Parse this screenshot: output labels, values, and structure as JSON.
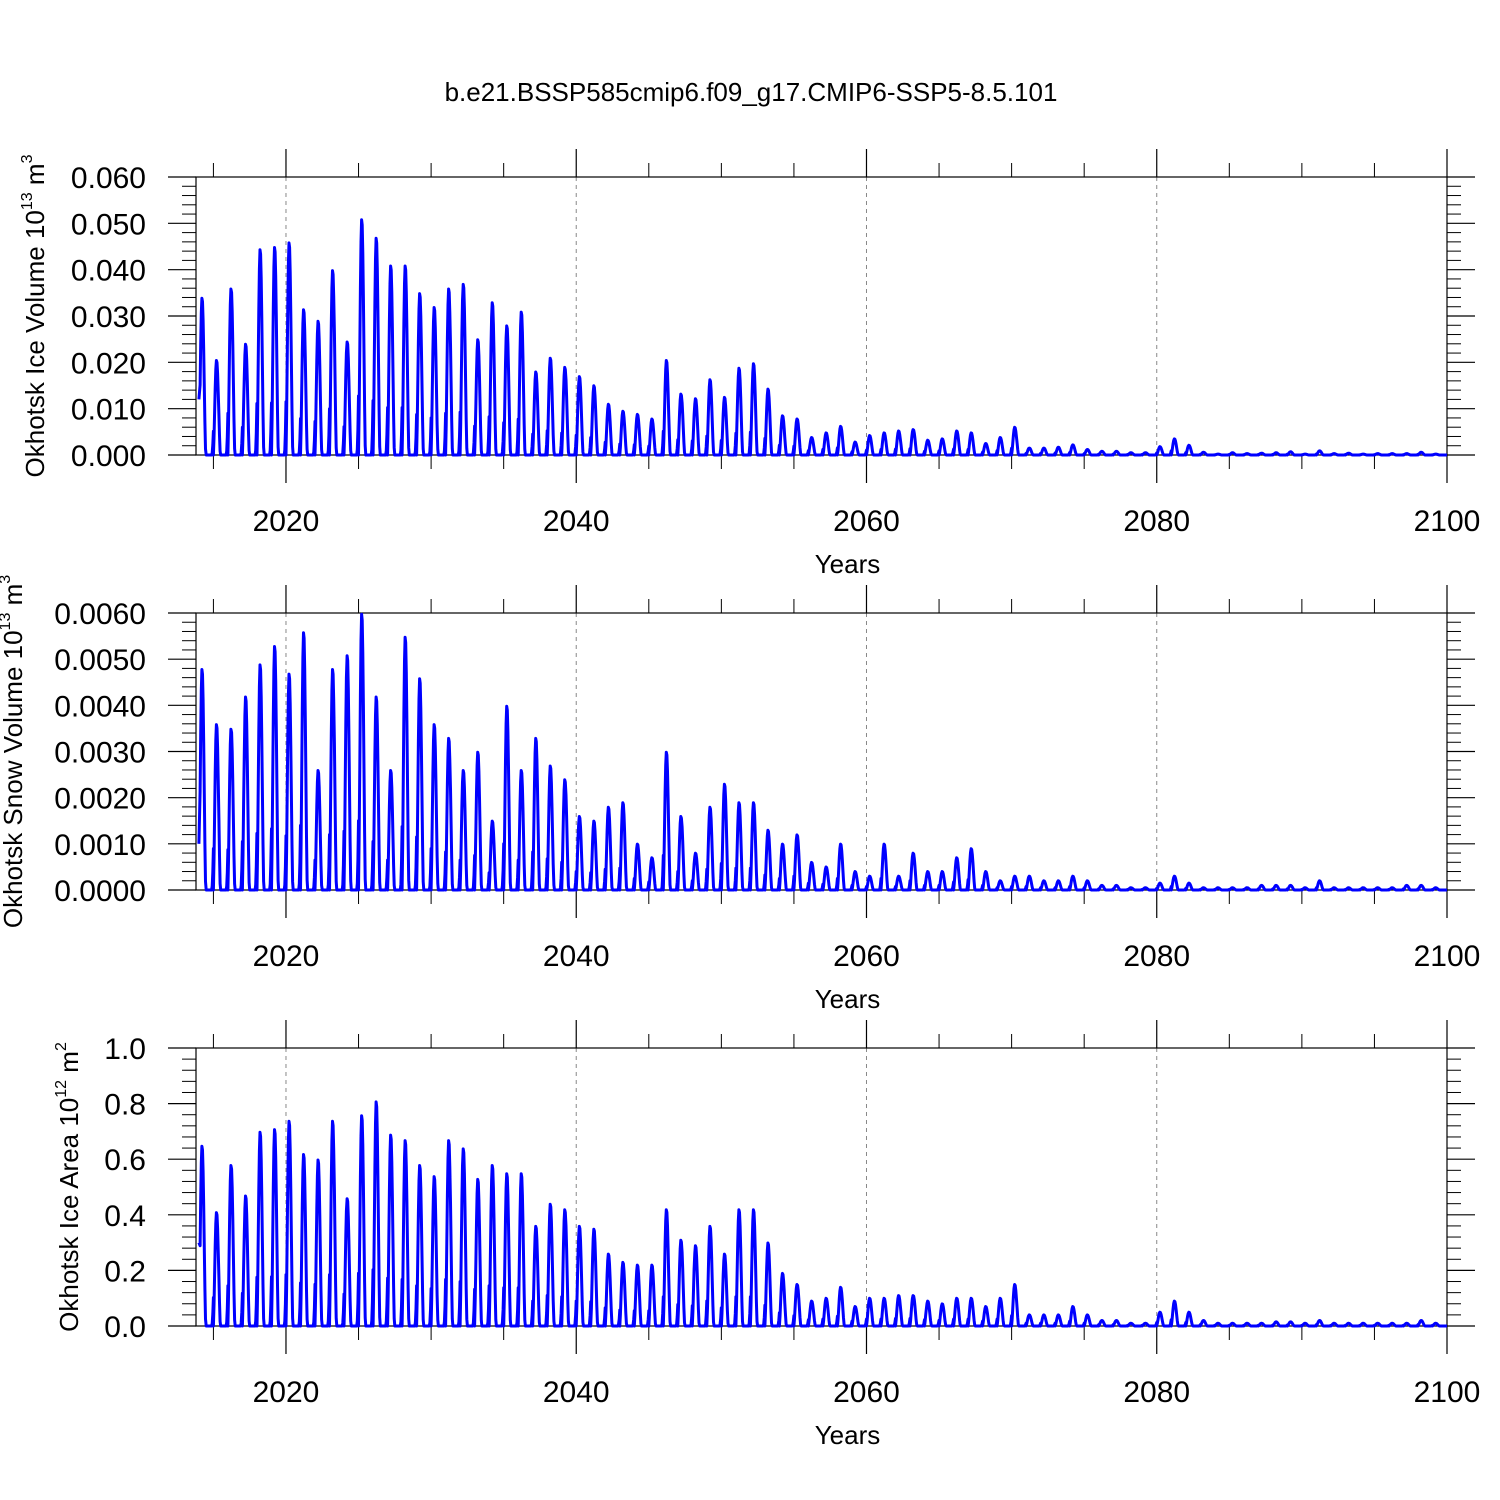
{
  "figure_title": "b.e21.BSSP585cmip6.f09_g17.CMIP6-SSP5-8.5.101",
  "series_color": "#0000ff",
  "chart_data": [
    {
      "type": "line",
      "xlabel": "Years",
      "ylabel": {
        "prefix": "Okhotsk Ice Volume 10",
        "exponent": "13",
        "unit": " m",
        "unit_exponent": "3"
      },
      "xlim": [
        2013.8,
        2100
      ],
      "ylim": [
        0,
        0.06
      ],
      "xticks": [
        2020,
        2040,
        2060,
        2080,
        2100
      ],
      "xtick_labels": [
        "2020",
        "2040",
        "2060",
        "2080",
        "2100"
      ],
      "yticks": [
        0,
        0.01,
        0.02,
        0.03,
        0.04,
        0.05,
        0.06
      ],
      "ytick_labels": [
        "0.000",
        "0.010",
        "0.020",
        "0.030",
        "0.040",
        "0.050",
        "0.060"
      ],
      "grid_vertical": true,
      "series": [
        {
          "start_year": 2014,
          "start_value": 0.012,
          "annual_peaks": [
            0.034,
            0.0205,
            0.036,
            0.024,
            0.0445,
            0.045,
            0.046,
            0.0315,
            0.029,
            0.04,
            0.0245,
            0.051,
            0.047,
            0.041,
            0.041,
            0.035,
            0.032,
            0.036,
            0.037,
            0.025,
            0.033,
            0.028,
            0.031,
            0.018,
            0.021,
            0.019,
            0.017,
            0.015,
            0.011,
            0.0095,
            0.0088,
            0.0078,
            0.0205,
            0.0132,
            0.0122,
            0.0163,
            0.0125,
            0.0188,
            0.0198,
            0.0143,
            0.0085,
            0.0078,
            0.0038,
            0.0048,
            0.0062,
            0.0028,
            0.0042,
            0.0048,
            0.0052,
            0.0055,
            0.0032,
            0.0035,
            0.0052,
            0.0048,
            0.0025,
            0.0038,
            0.006,
            0.0015,
            0.0015,
            0.0017,
            0.0022,
            0.0012,
            0.0008,
            0.0008,
            0.0005,
            0.0005,
            0.0018,
            0.0035,
            0.0021,
            0.0006,
            0.0002,
            0.0005,
            0.0003,
            0.0004,
            0.0005,
            0.0007,
            0.0002,
            0.0009,
            0.0003,
            0.0004,
            0.0002,
            0.0003,
            0.0003,
            0.0003,
            0.0006,
            0.0002
          ]
        }
      ]
    },
    {
      "type": "line",
      "xlabel": "Years",
      "ylabel": {
        "prefix": "Okhotsk Snow Volume 10",
        "exponent": "13",
        "unit": " m",
        "unit_exponent": "3"
      },
      "xlim": [
        2013.8,
        2100
      ],
      "ylim": [
        0,
        0.006
      ],
      "xticks": [
        2020,
        2040,
        2060,
        2080,
        2100
      ],
      "xtick_labels": [
        "2020",
        "2040",
        "2060",
        "2080",
        "2100"
      ],
      "yticks": [
        0,
        0.001,
        0.002,
        0.003,
        0.004,
        0.005,
        0.006
      ],
      "ytick_labels": [
        "0.0000",
        "0.0010",
        "0.0020",
        "0.0030",
        "0.0040",
        "0.0050",
        "0.0060"
      ],
      "grid_vertical": true,
      "series": [
        {
          "start_year": 2014,
          "start_value": 0.001,
          "annual_peaks": [
            0.0048,
            0.0036,
            0.0035,
            0.0042,
            0.0049,
            0.0053,
            0.0047,
            0.0056,
            0.0026,
            0.0048,
            0.0051,
            0.006,
            0.0042,
            0.0026,
            0.0055,
            0.0046,
            0.0036,
            0.0033,
            0.0026,
            0.003,
            0.0015,
            0.004,
            0.0026,
            0.0033,
            0.0027,
            0.0024,
            0.0016,
            0.0015,
            0.0018,
            0.0019,
            0.001,
            0.0007,
            0.003,
            0.0016,
            0.0008,
            0.0018,
            0.0023,
            0.0019,
            0.0019,
            0.0013,
            0.001,
            0.0012,
            0.0006,
            0.0005,
            0.001,
            0.0004,
            0.0003,
            0.001,
            0.0003,
            0.0008,
            0.0004,
            0.0004,
            0.0007,
            0.0009,
            0.0004,
            0.0002,
            0.0003,
            0.0003,
            0.0002,
            0.0002,
            0.0003,
            0.0002,
            0.0001,
            0.0001,
            5e-05,
            5e-05,
            0.00015,
            0.0003,
            0.00015,
            5e-05,
            5e-05,
            5e-05,
            5e-05,
            0.0001,
            0.0001,
            0.0001,
            5e-05,
            0.0002,
            5e-05,
            5e-05,
            5e-05,
            5e-05,
            5e-05,
            0.0001,
            0.0001,
            5e-05
          ]
        }
      ]
    },
    {
      "type": "line",
      "xlabel": "Years",
      "ylabel": {
        "prefix": "Okhotsk Ice Area 10",
        "exponent": "12",
        "unit": " m",
        "unit_exponent": "2"
      },
      "xlim": [
        2013.8,
        2100
      ],
      "ylim": [
        0,
        1.0
      ],
      "xticks": [
        2020,
        2040,
        2060,
        2080,
        2100
      ],
      "xtick_labels": [
        "2020",
        "2040",
        "2060",
        "2080",
        "2100"
      ],
      "yticks": [
        0,
        0.2,
        0.4,
        0.6,
        0.8,
        1.0
      ],
      "ytick_labels": [
        "0.0",
        "0.2",
        "0.4",
        "0.6",
        "0.8",
        "1.0"
      ],
      "grid_vertical": true,
      "series": [
        {
          "start_year": 2014,
          "start_value": 0.3,
          "annual_peaks": [
            0.65,
            0.41,
            0.58,
            0.47,
            0.7,
            0.71,
            0.74,
            0.62,
            0.6,
            0.74,
            0.46,
            0.76,
            0.81,
            0.69,
            0.67,
            0.58,
            0.54,
            0.67,
            0.64,
            0.53,
            0.58,
            0.55,
            0.55,
            0.36,
            0.44,
            0.42,
            0.36,
            0.35,
            0.26,
            0.23,
            0.22,
            0.22,
            0.42,
            0.31,
            0.29,
            0.36,
            0.26,
            0.42,
            0.42,
            0.3,
            0.19,
            0.15,
            0.09,
            0.1,
            0.14,
            0.07,
            0.1,
            0.1,
            0.11,
            0.11,
            0.09,
            0.08,
            0.1,
            0.1,
            0.07,
            0.1,
            0.15,
            0.04,
            0.04,
            0.04,
            0.07,
            0.04,
            0.02,
            0.02,
            0.01,
            0.01,
            0.05,
            0.09,
            0.05,
            0.02,
            0.01,
            0.01,
            0.01,
            0.01,
            0.015,
            0.015,
            0.01,
            0.02,
            0.01,
            0.01,
            0.01,
            0.01,
            0.01,
            0.01,
            0.02,
            0.01
          ]
        }
      ]
    }
  ]
}
